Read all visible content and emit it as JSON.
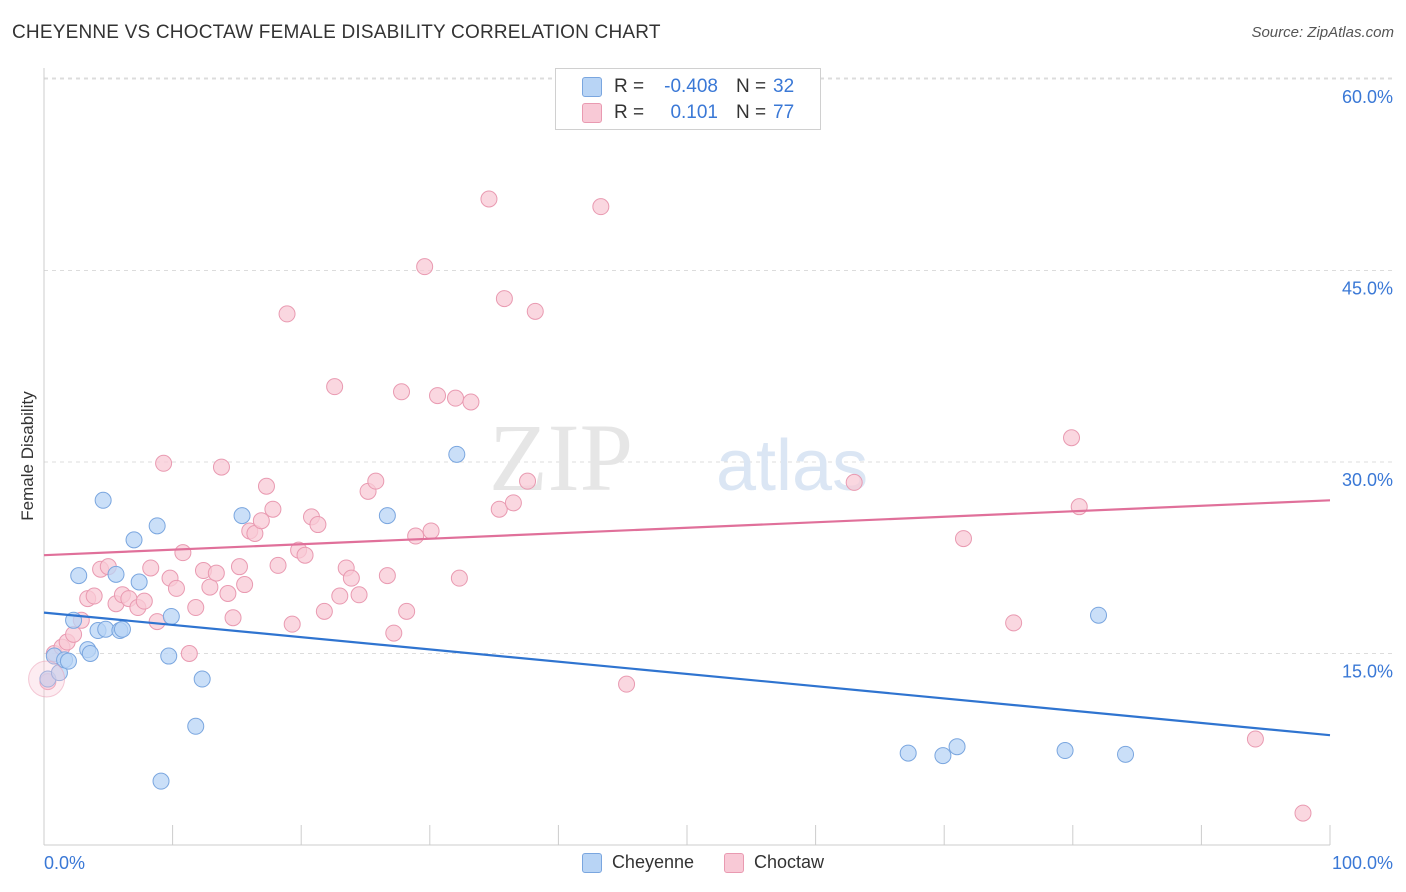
{
  "title": "CHEYENNE VS CHOCTAW FEMALE DISABILITY CORRELATION CHART",
  "source": "Source: ZipAtlas.com",
  "watermark": {
    "part1": "ZIP",
    "part2": "atlas"
  },
  "colors": {
    "blue_fill": "#b8d4f5",
    "blue_stroke": "#7aa6df",
    "blue_line": "#2f74d0",
    "pink_fill": "#f8c9d6",
    "pink_stroke": "#e99ab1",
    "pink_line": "#e0709a",
    "axis_label": "#3a78d6"
  },
  "legend": {
    "rows": [
      {
        "r_label": "R =",
        "r_value": "-0.408",
        "n_label": "N =",
        "n_value": "32"
      },
      {
        "r_label": "R =",
        "r_value": "0.101",
        "n_label": "N =",
        "n_value": "77"
      }
    ]
  },
  "chart_data": {
    "type": "scatter",
    "xlabel": "",
    "ylabel": "Female Disability",
    "xlim": [
      0,
      100
    ],
    "ylim": [
      0,
      60
    ],
    "x_tick_labels": [
      "0.0%",
      "100.0%"
    ],
    "y_tick_labels": [
      "15.0%",
      "30.0%",
      "45.0%",
      "60.0%"
    ],
    "y_ticks": [
      15,
      30,
      45,
      60
    ],
    "grid": "horizontal-dashed",
    "legend_position": "top-center",
    "series": [
      {
        "name": "Cheyenne",
        "trend": {
          "x": [
            0,
            100
          ],
          "y": [
            18.2,
            8.6
          ]
        },
        "points": [
          [
            0.3,
            13.0
          ],
          [
            0.8,
            14.8
          ],
          [
            1.2,
            13.5
          ],
          [
            1.6,
            14.5
          ],
          [
            1.9,
            14.4
          ],
          [
            2.3,
            17.6
          ],
          [
            2.7,
            21.1
          ],
          [
            3.4,
            15.3
          ],
          [
            3.6,
            15.0
          ],
          [
            4.2,
            16.8
          ],
          [
            4.6,
            27.0
          ],
          [
            4.8,
            16.9
          ],
          [
            5.6,
            21.2
          ],
          [
            5.9,
            16.8
          ],
          [
            6.1,
            16.9
          ],
          [
            7.0,
            23.9
          ],
          [
            7.4,
            20.6
          ],
          [
            8.8,
            25.0
          ],
          [
            9.1,
            5.0
          ],
          [
            9.7,
            14.8
          ],
          [
            9.9,
            17.9
          ],
          [
            11.8,
            9.3
          ],
          [
            12.3,
            13.0
          ],
          [
            15.4,
            25.8
          ],
          [
            26.7,
            25.8
          ],
          [
            32.1,
            30.6
          ],
          [
            67.2,
            7.2
          ],
          [
            69.9,
            7.0
          ],
          [
            71.0,
            7.7
          ],
          [
            79.4,
            7.4
          ],
          [
            82.0,
            18.0
          ],
          [
            84.1,
            7.1
          ]
        ]
      },
      {
        "name": "Choctaw",
        "trend": {
          "x": [
            0,
            100
          ],
          "y": [
            22.7,
            27.0
          ]
        },
        "points": [
          [
            0.3,
            12.8
          ],
          [
            0.8,
            15.0
          ],
          [
            1.4,
            15.5
          ],
          [
            1.8,
            15.9
          ],
          [
            2.3,
            16.5
          ],
          [
            2.9,
            17.6
          ],
          [
            3.4,
            19.3
          ],
          [
            3.9,
            19.5
          ],
          [
            4.4,
            21.6
          ],
          [
            5.0,
            21.8
          ],
          [
            5.6,
            18.9
          ],
          [
            6.1,
            19.6
          ],
          [
            6.6,
            19.3
          ],
          [
            7.3,
            18.6
          ],
          [
            7.8,
            19.1
          ],
          [
            8.3,
            21.7
          ],
          [
            8.8,
            17.5
          ],
          [
            9.3,
            29.9
          ],
          [
            9.8,
            20.9
          ],
          [
            10.3,
            20.1
          ],
          [
            10.8,
            22.9
          ],
          [
            11.3,
            15.0
          ],
          [
            11.8,
            18.6
          ],
          [
            12.4,
            21.5
          ],
          [
            12.9,
            20.2
          ],
          [
            13.4,
            21.3
          ],
          [
            13.8,
            29.6
          ],
          [
            14.3,
            19.7
          ],
          [
            14.7,
            17.8
          ],
          [
            15.2,
            21.8
          ],
          [
            15.6,
            20.4
          ],
          [
            16.0,
            24.6
          ],
          [
            16.4,
            24.4
          ],
          [
            16.9,
            25.4
          ],
          [
            17.3,
            28.1
          ],
          [
            17.8,
            26.3
          ],
          [
            18.2,
            21.9
          ],
          [
            18.9,
            41.6
          ],
          [
            19.3,
            17.3
          ],
          [
            19.8,
            23.1
          ],
          [
            20.3,
            22.7
          ],
          [
            20.8,
            25.7
          ],
          [
            21.3,
            25.1
          ],
          [
            21.8,
            18.3
          ],
          [
            22.6,
            35.9
          ],
          [
            23.0,
            19.5
          ],
          [
            23.5,
            21.7
          ],
          [
            23.9,
            20.9
          ],
          [
            24.5,
            19.6
          ],
          [
            25.2,
            27.7
          ],
          [
            25.8,
            28.5
          ],
          [
            26.7,
            21.1
          ],
          [
            27.2,
            16.6
          ],
          [
            27.8,
            35.5
          ],
          [
            28.2,
            18.3
          ],
          [
            28.9,
            24.2
          ],
          [
            29.6,
            45.3
          ],
          [
            30.1,
            24.6
          ],
          [
            30.6,
            35.2
          ],
          [
            32.0,
            35.0
          ],
          [
            32.3,
            20.9
          ],
          [
            33.2,
            34.7
          ],
          [
            34.6,
            50.6
          ],
          [
            35.4,
            26.3
          ],
          [
            35.8,
            42.8
          ],
          [
            36.5,
            26.8
          ],
          [
            37.6,
            28.5
          ],
          [
            38.2,
            41.8
          ],
          [
            43.3,
            50.0
          ],
          [
            45.3,
            12.6
          ],
          [
            63.0,
            28.4
          ],
          [
            71.5,
            24.0
          ],
          [
            75.4,
            17.4
          ],
          [
            79.9,
            31.9
          ],
          [
            80.5,
            26.5
          ],
          [
            94.2,
            8.3
          ],
          [
            97.9,
            2.5
          ]
        ]
      }
    ]
  }
}
